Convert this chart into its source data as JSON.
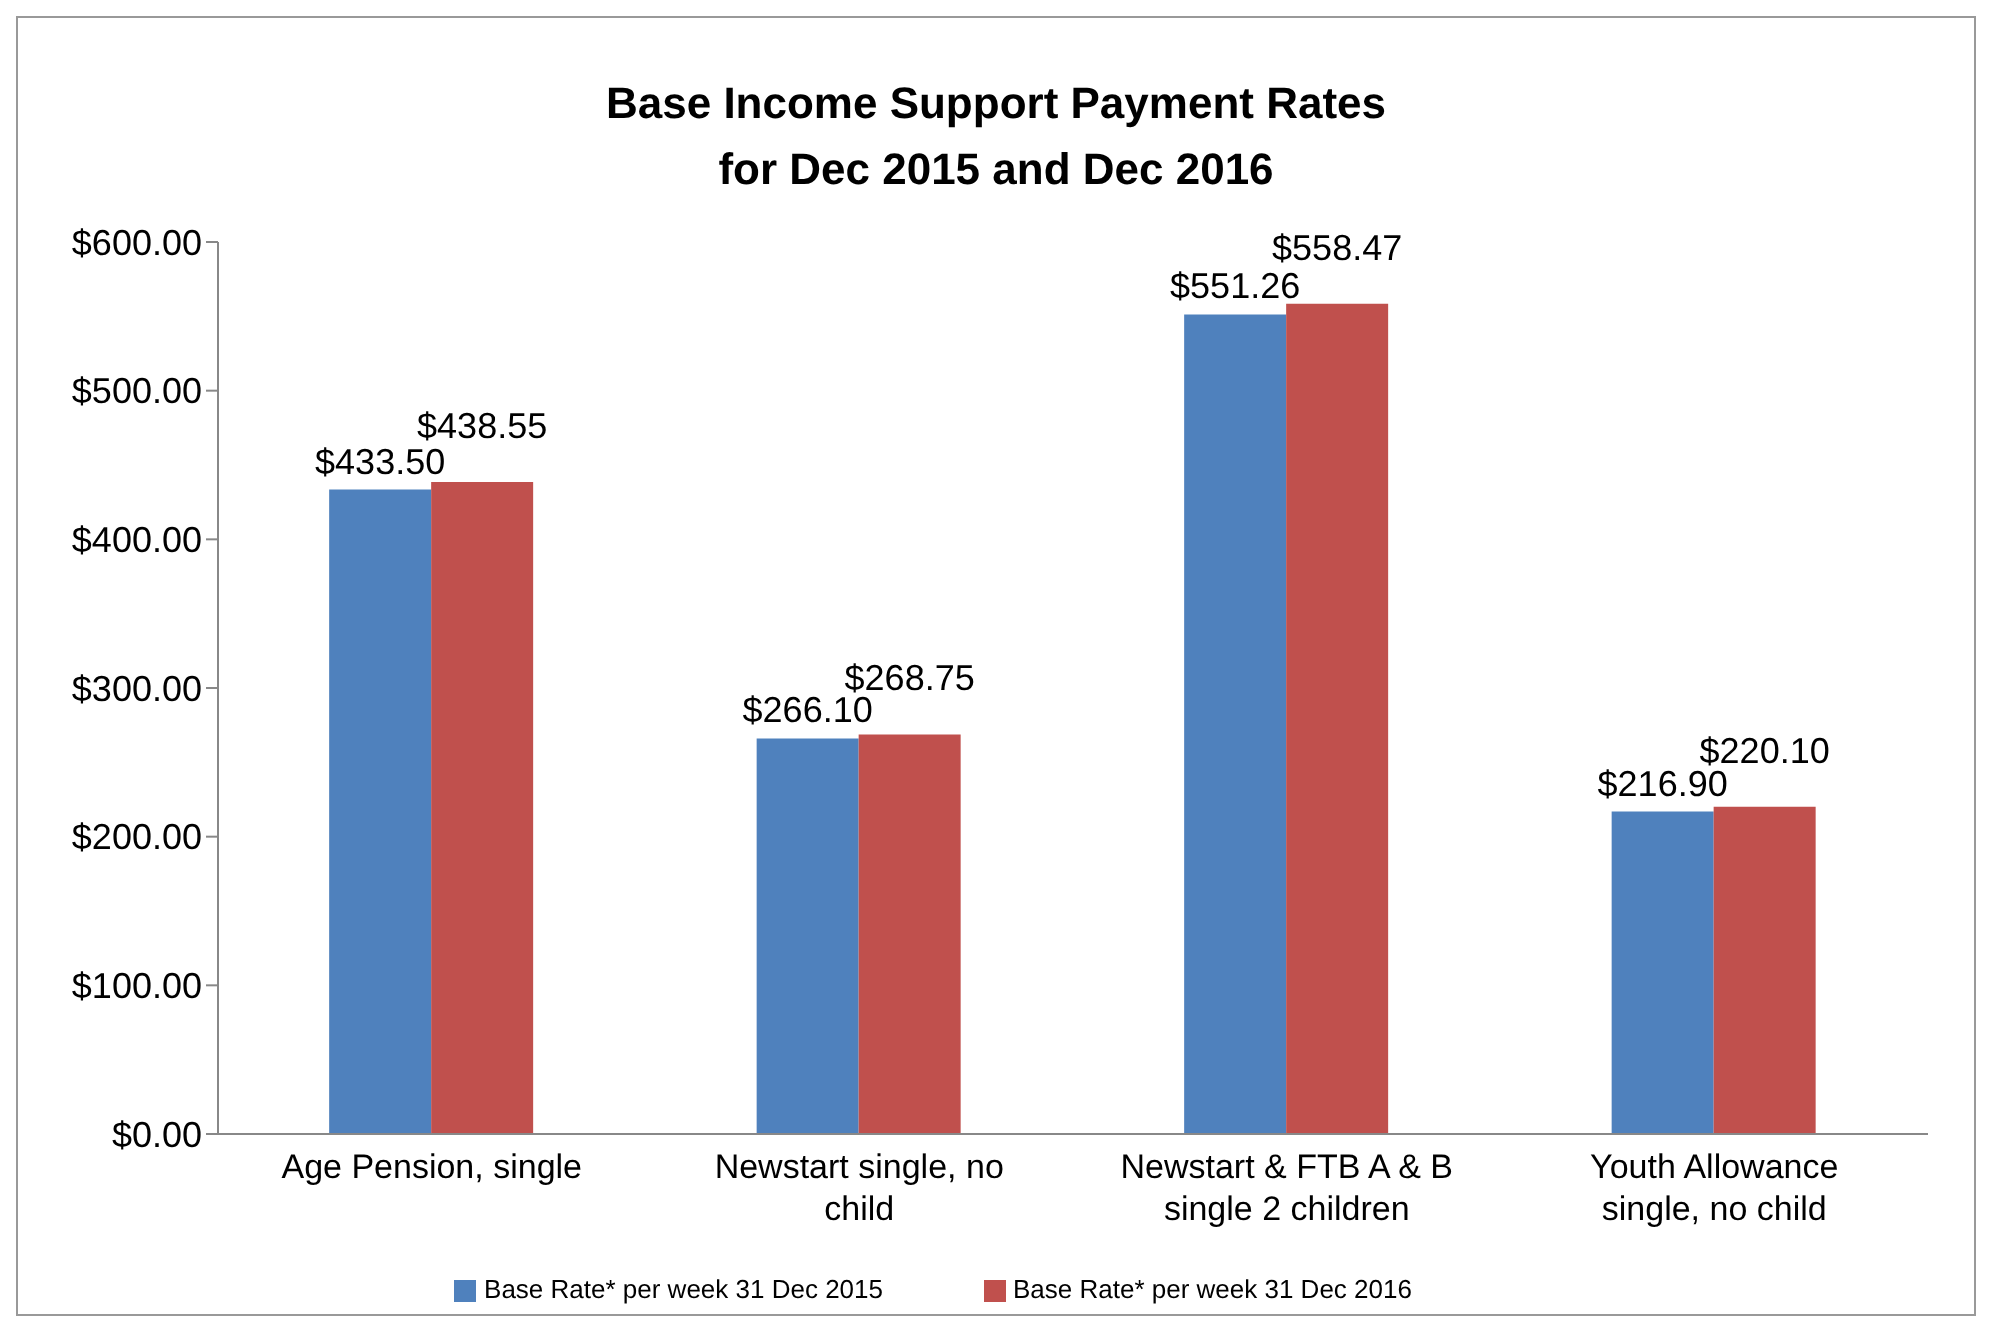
{
  "chart_data": {
    "type": "bar",
    "title": "Base Income Support Payment Rates\nfor Dec 2015 and Dec 2016",
    "categories": [
      "Age Pension,     single",
      "Newstart single, no child",
      "Newstart & FTB A & B single 2 children",
      "Youth Allowance single, no child"
    ],
    "series": [
      {
        "name": "Base Rate*  per week 31 Dec 2015",
        "color": "#4f81bd",
        "values": [
          433.5,
          266.1,
          551.26,
          216.9
        ],
        "value_labels": [
          "$433.50",
          "$266.10",
          "$551.26",
          "$216.90"
        ]
      },
      {
        "name": "Base Rate*  per week 31 Dec 2016",
        "color": "#c0504d",
        "values": [
          438.55,
          268.75,
          558.47,
          220.1
        ],
        "value_labels": [
          "$438.55",
          "$268.75",
          "$558.47",
          "$220.10"
        ]
      }
    ],
    "ylim": [
      0,
      600
    ],
    "yticks": [
      {
        "value": 0,
        "label": "$0.00"
      },
      {
        "value": 100,
        "label": "$100.00"
      },
      {
        "value": 200,
        "label": "$200.00"
      },
      {
        "value": 300,
        "label": "$300.00"
      },
      {
        "value": 400,
        "label": "$400.00"
      },
      {
        "value": 500,
        "label": "$500.00"
      },
      {
        "value": 600,
        "label": "$600.00"
      }
    ],
    "grid": false,
    "legend": "bottom"
  }
}
